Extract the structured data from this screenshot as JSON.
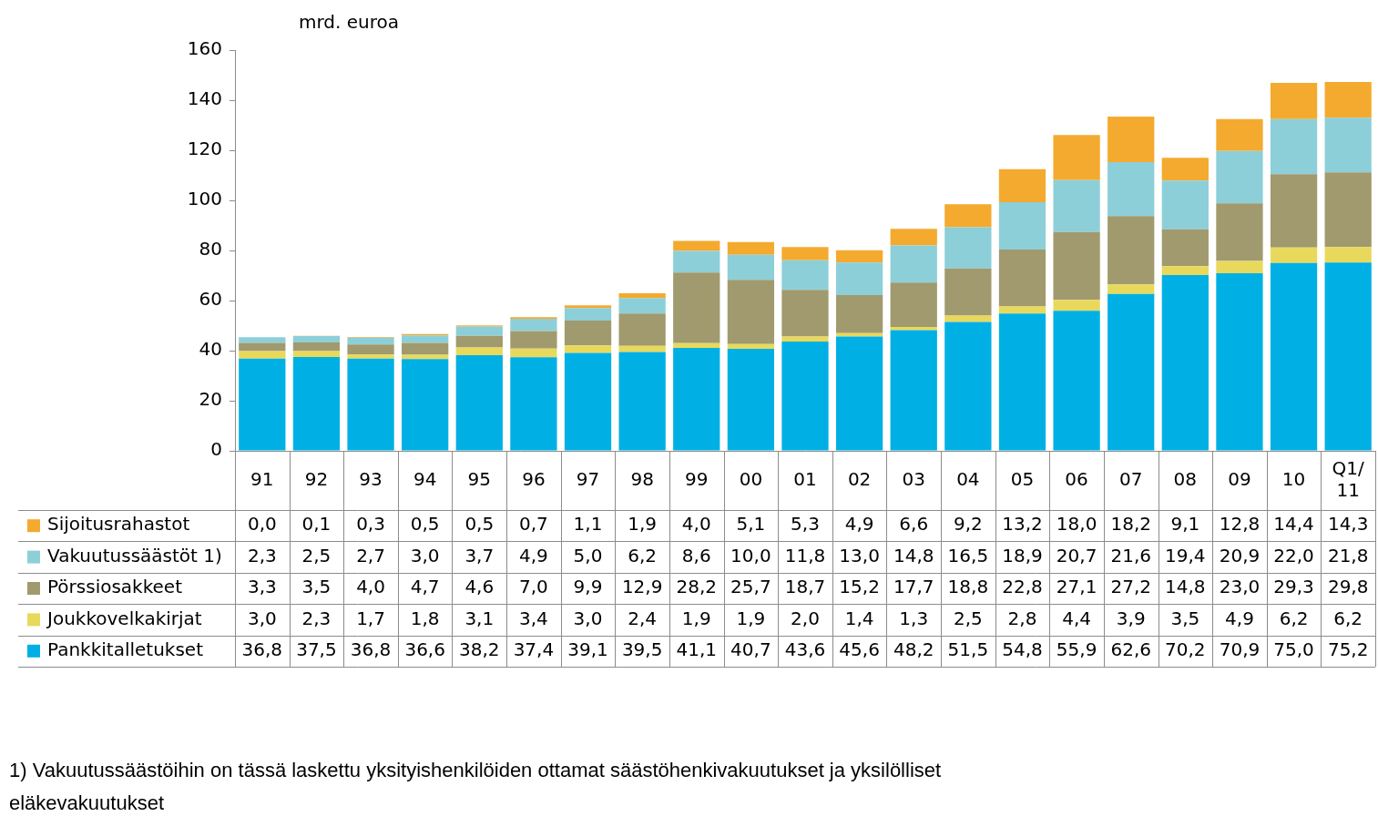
{
  "chart_data": {
    "type": "bar",
    "stacked": true,
    "grid": false,
    "y_label": "mrd. euroa",
    "footnote": "1)  Vakuutussäästöihin on tässä laskettu yksityishenkilöiden ottamat säästöhenkivakuutukset ja yksilölliset eläkevakuutukset",
    "categories": [
      "91",
      "92",
      "93",
      "94",
      "95",
      "96",
      "97",
      "98",
      "99",
      "00",
      "01",
      "02",
      "03",
      "04",
      "05",
      "06",
      "07",
      "08",
      "09",
      "10",
      "Q1/11"
    ],
    "ylim": [
      0,
      160
    ],
    "yticks": [
      0,
      20,
      40,
      60,
      80,
      100,
      120,
      140,
      160
    ],
    "series": [
      {
        "name": "Pankkitalletukset",
        "color": "#00b0e4",
        "values": [
          36.8,
          37.5,
          36.8,
          36.6,
          38.2,
          37.4,
          39.1,
          39.5,
          41.1,
          40.7,
          43.6,
          45.6,
          48.2,
          51.5,
          54.8,
          55.9,
          62.6,
          70.2,
          70.9,
          75.0,
          75.2
        ],
        "value_labels": [
          "36,8",
          "37,5",
          "36,8",
          "36,6",
          "38,2",
          "37,4",
          "39,1",
          "39,5",
          "41,1",
          "40,7",
          "43,6",
          "45,6",
          "48,2",
          "51,5",
          "54,8",
          "55,9",
          "62,6",
          "70,2",
          "70,9",
          "75,0",
          "75,2"
        ]
      },
      {
        "name": "Joukkovelkakirjat",
        "color": "#e8d95c",
        "values": [
          3.0,
          2.3,
          1.7,
          1.8,
          3.1,
          3.4,
          3.0,
          2.4,
          1.9,
          1.9,
          2.0,
          1.4,
          1.3,
          2.5,
          2.8,
          4.4,
          3.9,
          3.5,
          4.9,
          6.2,
          6.2
        ],
        "value_labels": [
          "3,0",
          "2,3",
          "1,7",
          "1,8",
          "3,1",
          "3,4",
          "3,0",
          "2,4",
          "1,9",
          "1,9",
          "2,0",
          "1,4",
          "1,3",
          "2,5",
          "2,8",
          "4,4",
          "3,9",
          "3,5",
          "4,9",
          "6,2",
          "6,2"
        ]
      },
      {
        "name": "Pörssiosakkeet",
        "color": "#a09a6e",
        "values": [
          3.3,
          3.5,
          4.0,
          4.7,
          4.6,
          7.0,
          9.9,
          12.9,
          28.2,
          25.7,
          18.7,
          15.2,
          17.7,
          18.8,
          22.8,
          27.1,
          27.2,
          14.8,
          23.0,
          29.3,
          29.8
        ],
        "value_labels": [
          "3,3",
          "3,5",
          "4,0",
          "4,7",
          "4,6",
          "7,0",
          "9,9",
          "12,9",
          "28,2",
          "25,7",
          "18,7",
          "15,2",
          "17,7",
          "18,8",
          "22,8",
          "27,1",
          "27,2",
          "14,8",
          "23,0",
          "29,3",
          "29,8"
        ]
      },
      {
        "name": "Vakuutussäästöt 1)",
        "color": "#8dcfd8",
        "values": [
          2.3,
          2.5,
          2.7,
          3.0,
          3.7,
          4.9,
          5.0,
          6.2,
          8.6,
          10.0,
          11.8,
          13.0,
          14.8,
          16.5,
          18.9,
          20.7,
          21.6,
          19.4,
          20.9,
          22.0,
          21.8
        ],
        "value_labels": [
          "2,3",
          "2,5",
          "2,7",
          "3,0",
          "3,7",
          "4,9",
          "5,0",
          "6,2",
          "8,6",
          "10,0",
          "11,8",
          "13,0",
          "14,8",
          "16,5",
          "18,9",
          "20,7",
          "21,6",
          "19,4",
          "20,9",
          "22,0",
          "21,8"
        ]
      },
      {
        "name": "Sijoitusrahastot",
        "color": "#f4aa2e",
        "values": [
          0.0,
          0.1,
          0.3,
          0.5,
          0.5,
          0.7,
          1.1,
          1.9,
          4.0,
          5.1,
          5.3,
          4.9,
          6.6,
          9.2,
          13.2,
          18.0,
          18.2,
          9.1,
          12.8,
          14.4,
          14.3
        ],
        "value_labels": [
          "0,0",
          "0,1",
          "0,3",
          "0,5",
          "0,5",
          "0,7",
          "1,1",
          "1,9",
          "4,0",
          "5,1",
          "5,3",
          "4,9",
          "6,6",
          "9,2",
          "13,2",
          "18,0",
          "18,2",
          "9,1",
          "12,8",
          "14,4",
          "14,3"
        ]
      }
    ]
  }
}
